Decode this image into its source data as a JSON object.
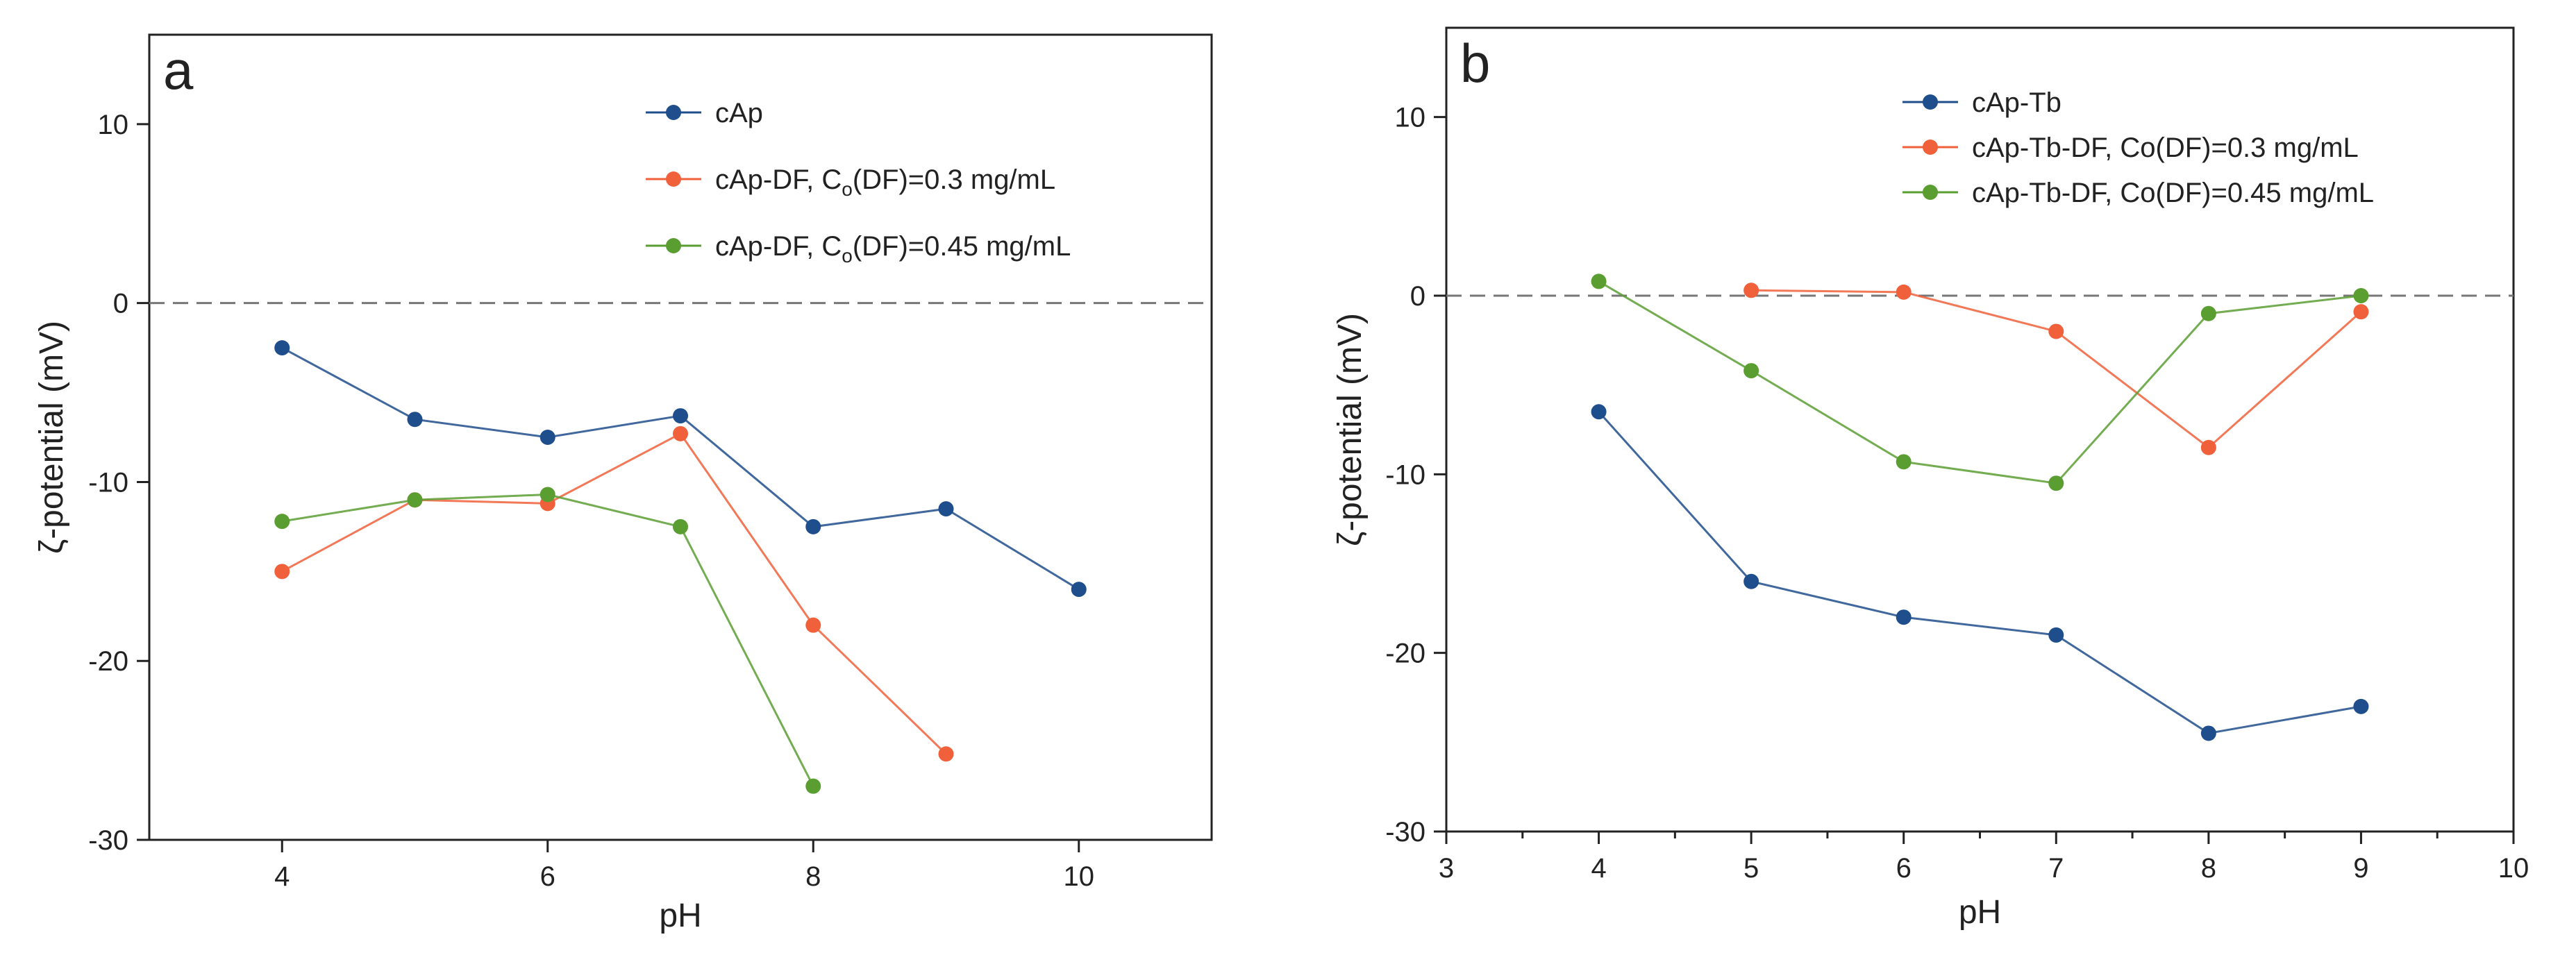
{
  "chart_data": [
    {
      "type": "line",
      "panel_label": "a",
      "xlabel": "pH",
      "ylabel": "ζ-potential (mV)",
      "xlim": [
        3,
        11
      ],
      "ylim": [
        -30,
        15
      ],
      "x_ticks": [
        4,
        6,
        8,
        10
      ],
      "y_ticks": [
        -30,
        -20,
        -10,
        0,
        10
      ],
      "zero_line": true,
      "legend_position": "top-right",
      "series": [
        {
          "name": "cAp",
          "name_parts": [
            "cAp"
          ],
          "color": "#1f4e8c",
          "x": [
            4,
            5,
            6,
            7,
            8,
            9,
            10
          ],
          "y": [
            -2.5,
            -6.5,
            -7.5,
            -6.3,
            -12.5,
            -11.5,
            -16
          ]
        },
        {
          "name": "cAp-DF, Co(DF)=0.3 mg/mL",
          "name_parts": [
            "cAp-DF, C",
            "o",
            "(DF)=0.3 mg/mL"
          ],
          "color": "#f0603a",
          "x": [
            4,
            5,
            6,
            7,
            8,
            9
          ],
          "y": [
            -15,
            -11,
            -11.2,
            -7.3,
            -18,
            -25.2
          ]
        },
        {
          "name": "cAp-DF, Co(DF)=0.45 mg/mL",
          "name_parts": [
            "cAp-DF, C",
            "o",
            "(DF)=0.45 mg/mL"
          ],
          "color": "#5a9e32",
          "x": [
            4,
            5,
            6,
            7,
            8
          ],
          "y": [
            -12.2,
            -11,
            -10.7,
            -12.5,
            -27
          ]
        }
      ]
    },
    {
      "type": "line",
      "panel_label": "b",
      "xlabel": "pH",
      "ylabel": "ζ-potential (mV)",
      "xlim": [
        3,
        10
      ],
      "ylim": [
        -30,
        15
      ],
      "x_ticks": [
        3,
        4,
        5,
        6,
        7,
        8,
        9,
        10
      ],
      "y_ticks": [
        -30,
        -20,
        -10,
        0,
        10
      ],
      "zero_line": true,
      "legend_position": "top-right",
      "series": [
        {
          "name": "cAp-Tb",
          "name_parts": [
            "cAp-Tb"
          ],
          "color": "#1f4e8c",
          "x": [
            4,
            5,
            6,
            7,
            8,
            9
          ],
          "y": [
            -6.5,
            -16,
            -18,
            -19,
            -24.5,
            -23
          ]
        },
        {
          "name": "cAp-Tb-DF, Co(DF)=0.3 mg/mL",
          "name_parts": [
            "cAp-Tb-DF, Co(DF)=0.3 mg/mL"
          ],
          "color": "#f0603a",
          "x": [
            5,
            6,
            7,
            8,
            9
          ],
          "y": [
            0.3,
            0.2,
            -2,
            -8.5,
            -0.9
          ]
        },
        {
          "name": "cAp-Tb-DF, Co(DF)=0.45 mg/mL",
          "name_parts": [
            "cAp-Tb-DF, Co(DF)=0.45 mg/mL"
          ],
          "color": "#5a9e32",
          "x": [
            4,
            5,
            6,
            7,
            8,
            9
          ],
          "y": [
            0.8,
            -4.2,
            -9.3,
            -10.5,
            -1,
            0
          ]
        }
      ]
    }
  ]
}
